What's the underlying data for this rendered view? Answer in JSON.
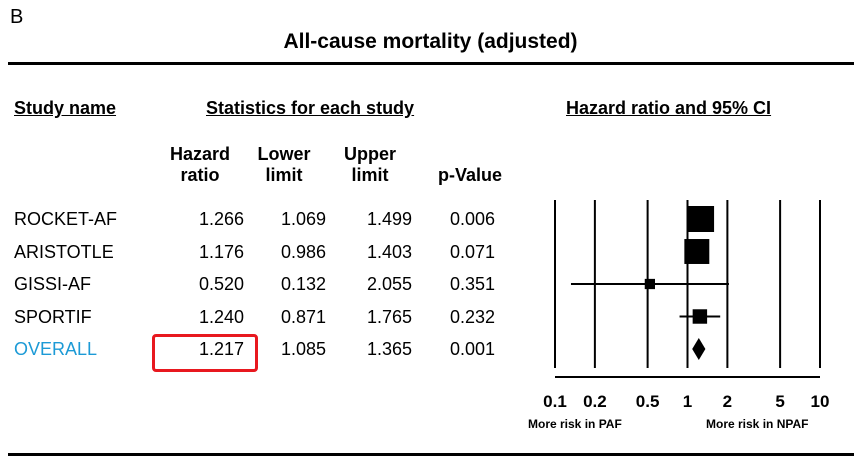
{
  "panel_label": "B",
  "chart_data": {
    "type": "forest",
    "title": "All-cause mortality (adjusted)",
    "section_headers": {
      "study": "Study name",
      "stats": "Statistics for each study",
      "plot": "Hazard ratio and 95% CI"
    },
    "columns": {
      "hr": "Hazard ratio",
      "lower": "Lower limit",
      "upper": "Upper limit",
      "p": "p-Value"
    },
    "studies": [
      {
        "name": "ROCKET-AF",
        "hr": "1.266",
        "lower": "1.069",
        "upper": "1.499",
        "p": "0.006",
        "hr_v": 1.266,
        "lo_v": 1.069,
        "up_v": 1.499,
        "weight": 1.0,
        "marker": "square"
      },
      {
        "name": "ARISTOTLE",
        "hr": "1.176",
        "lower": "0.986",
        "upper": "1.403",
        "p": "0.071",
        "hr_v": 1.176,
        "lo_v": 0.986,
        "up_v": 1.403,
        "weight": 0.95,
        "marker": "square"
      },
      {
        "name": "GISSI-AF",
        "hr": "0.520",
        "lower": "0.132",
        "upper": "2.055",
        "p": "0.351",
        "hr_v": 0.52,
        "lo_v": 0.132,
        "up_v": 2.055,
        "weight": 0.25,
        "marker": "square"
      },
      {
        "name": "SPORTIF",
        "hr": "1.240",
        "lower": "0.871",
        "upper": "1.765",
        "p": "0.232",
        "hr_v": 1.24,
        "lo_v": 0.871,
        "up_v": 1.765,
        "weight": 0.45,
        "marker": "square"
      },
      {
        "name": "OVERALL",
        "hr": "1.217",
        "lower": "1.085",
        "upper": "1.365",
        "p": "0.001",
        "hr_v": 1.217,
        "lo_v": 1.085,
        "up_v": 1.365,
        "weight": 1.0,
        "marker": "diamond"
      }
    ],
    "x_scale": "log",
    "x_range": [
      0.1,
      10
    ],
    "x_ticks": [
      {
        "value": 0.1,
        "label": "0.1"
      },
      {
        "value": 0.2,
        "label": "0.2"
      },
      {
        "value": 0.5,
        "label": "0.5"
      },
      {
        "value": 1,
        "label": "1"
      },
      {
        "value": 2,
        "label": "2"
      },
      {
        "value": 5,
        "label": "5"
      },
      {
        "value": 10,
        "label": "10"
      }
    ],
    "left_label": "More risk in PAF",
    "right_label": "More risk in NPAF",
    "highlighted_cell": "OVERALL hazard ratio",
    "colors": {
      "overall_label": "#1c9ad6",
      "highlight_box": "#e8181f"
    }
  }
}
